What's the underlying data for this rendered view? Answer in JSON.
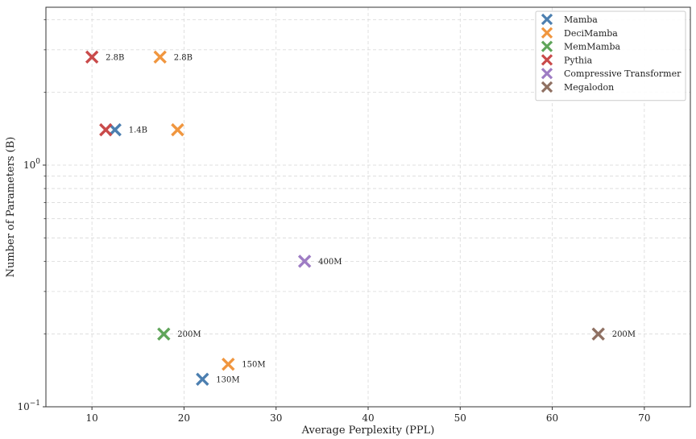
{
  "chart_data": {
    "type": "scatter",
    "title": "",
    "xlabel": "Average Perplexity (PPL)",
    "ylabel": "Number of Parameters (B)",
    "xlim": [
      5,
      75
    ],
    "ylim": [
      0.1,
      4.5
    ],
    "yscale": "log",
    "grid": true,
    "legend_position": "top-right",
    "x_ticks": [
      10,
      20,
      30,
      40,
      50,
      60,
      70
    ],
    "x_tick_labels": [
      "10",
      "20",
      "30",
      "40",
      "50",
      "60",
      "70"
    ],
    "y_ticks": [
      {
        "value": 1,
        "base": "10",
        "exp": "0"
      },
      {
        "value": 0.1,
        "base": "10",
        "exp": "−1"
      }
    ],
    "series": [
      {
        "name": "Mamba",
        "color": "#4c7fb0",
        "points": [
          {
            "x": 12.5,
            "y": 1.4,
            "label": "1.4B"
          },
          {
            "x": 22.0,
            "y": 0.13,
            "label": "130M"
          }
        ]
      },
      {
        "name": "DeciMamba",
        "color": "#f0963f",
        "points": [
          {
            "x": 17.4,
            "y": 2.8,
            "label": "2.8B"
          },
          {
            "x": 19.3,
            "y": 1.4,
            "label": ""
          },
          {
            "x": 24.8,
            "y": 0.15,
            "label": "150M"
          }
        ]
      },
      {
        "name": "MemMamba",
        "color": "#5fa55a",
        "points": [
          {
            "x": 17.8,
            "y": 0.2,
            "label": "200M"
          }
        ]
      },
      {
        "name": "Pythia",
        "color": "#c94a4a",
        "points": [
          {
            "x": 10.0,
            "y": 2.8,
            "label": "2.8B"
          },
          {
            "x": 11.5,
            "y": 1.4,
            "label": ""
          }
        ]
      },
      {
        "name": "Compressive Transformer",
        "color": "#9e7cc4",
        "points": [
          {
            "x": 33.1,
            "y": 0.4,
            "label": "400M"
          }
        ]
      },
      {
        "name": "Megalodon",
        "color": "#8f7062",
        "points": [
          {
            "x": 65.0,
            "y": 0.2,
            "label": "200M"
          }
        ]
      }
    ]
  }
}
